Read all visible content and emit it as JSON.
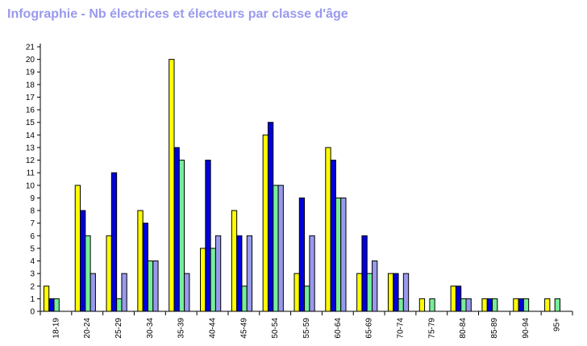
{
  "chart_data": {
    "type": "bar",
    "title": "Infographie - Nb électrices et électeurs par classe d'âge",
    "categories": [
      "18-19",
      "20-24",
      "25-29",
      "30-34",
      "35-39",
      "40-44",
      "45-49",
      "50-54",
      "55-59",
      "60-64",
      "65-69",
      "70-74",
      "75-79",
      "80-84",
      "85-89",
      "90-94",
      "95+"
    ],
    "series": [
      {
        "color": "#ffff00",
        "values": [
          2,
          10,
          6,
          8,
          20,
          5,
          8,
          14,
          3,
          13,
          3,
          3,
          1,
          2,
          1,
          1,
          1
        ]
      },
      {
        "color": "#0000dd",
        "values": [
          1,
          8,
          11,
          7,
          13,
          12,
          6,
          15,
          9,
          12,
          6,
          3,
          0,
          2,
          1,
          1,
          0
        ]
      },
      {
        "color": "#77ee99",
        "values": [
          1,
          6,
          1,
          4,
          12,
          5,
          2,
          10,
          2,
          9,
          3,
          1,
          1,
          1,
          1,
          1,
          1
        ]
      },
      {
        "color": "#9999ee",
        "values": [
          0,
          3,
          3,
          4,
          3,
          6,
          6,
          10,
          6,
          9,
          4,
          3,
          0,
          1,
          0,
          0,
          0
        ]
      }
    ],
    "ylim": [
      0,
      21
    ],
    "yticks": [
      0,
      1,
      2,
      3,
      4,
      5,
      6,
      7,
      8,
      9,
      10,
      11,
      12,
      13,
      14,
      15,
      16,
      17,
      18,
      19,
      20,
      21
    ],
    "grid": false,
    "title_color": "#9999ee"
  }
}
